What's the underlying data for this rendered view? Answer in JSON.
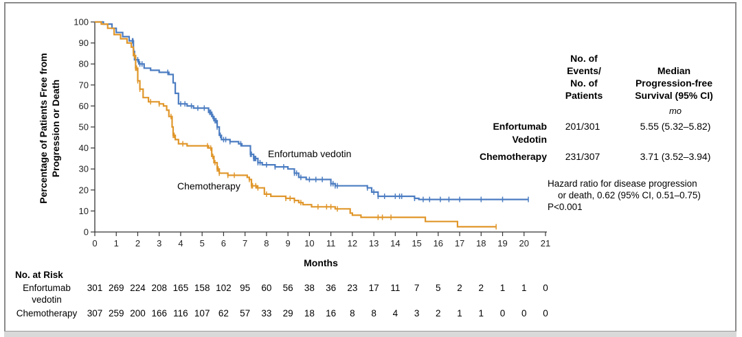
{
  "chart_data": {
    "type": "line",
    "subtype": "kaplan-meier",
    "xlabel": "Months",
    "ylabel": [
      "Percentage of Patients Free from",
      "Progression or Death"
    ],
    "xlim": [
      0,
      21
    ],
    "ylim": [
      0,
      100
    ],
    "x_ticks": [
      "0",
      "1",
      "2",
      "3",
      "4",
      "5",
      "6",
      "7",
      "8",
      "9",
      "10",
      "11",
      "12",
      "13",
      "14",
      "15",
      "16",
      "17",
      "18",
      "19",
      "20",
      "21"
    ],
    "y_ticks": [
      "0",
      "10",
      "20",
      "30",
      "40",
      "50",
      "60",
      "70",
      "80",
      "90",
      "100"
    ],
    "grid": false,
    "series": [
      {
        "name": "Enfortumab vedotin",
        "color": "#4b7cc1",
        "steps": [
          [
            0,
            100
          ],
          [
            0.4,
            99
          ],
          [
            0.8,
            97
          ],
          [
            1.0,
            95
          ],
          [
            1.3,
            93
          ],
          [
            1.6,
            91
          ],
          [
            1.8,
            86
          ],
          [
            1.85,
            82
          ],
          [
            2.05,
            80
          ],
          [
            2.3,
            78
          ],
          [
            2.6,
            77
          ],
          [
            3.0,
            76
          ],
          [
            3.45,
            75
          ],
          [
            3.65,
            71
          ],
          [
            3.75,
            66
          ],
          [
            3.9,
            61
          ],
          [
            4.3,
            60
          ],
          [
            4.6,
            59
          ],
          [
            5.3,
            57
          ],
          [
            5.45,
            55
          ],
          [
            5.55,
            53
          ],
          [
            5.7,
            50
          ],
          [
            5.8,
            46
          ],
          [
            5.9,
            44
          ],
          [
            6.3,
            43
          ],
          [
            6.7,
            42
          ],
          [
            6.85,
            41
          ],
          [
            7.25,
            37
          ],
          [
            7.4,
            35
          ],
          [
            7.6,
            33
          ],
          [
            7.8,
            32
          ],
          [
            8.4,
            31
          ],
          [
            9.0,
            30
          ],
          [
            9.3,
            28
          ],
          [
            9.5,
            26
          ],
          [
            9.85,
            25
          ],
          [
            11.0,
            23
          ],
          [
            11.2,
            22
          ],
          [
            12.7,
            21
          ],
          [
            12.9,
            19
          ],
          [
            13.2,
            17
          ],
          [
            14.2,
            17
          ],
          [
            14.9,
            16
          ],
          [
            15.1,
            15.5
          ],
          [
            20.2,
            15.5
          ]
        ],
        "censor_x": [
          1.75,
          1.78,
          1.82,
          1.9,
          2.0,
          2.1,
          2.2,
          3.4,
          4.0,
          4.2,
          4.5,
          4.8,
          5.1,
          5.35,
          5.4,
          5.5,
          5.6,
          5.65,
          5.7,
          5.85,
          6.0,
          6.1,
          6.3,
          6.8,
          7.25,
          7.3,
          7.4,
          7.45,
          7.5,
          7.6,
          7.7,
          8.0,
          8.4,
          8.8,
          9.3,
          9.4,
          9.6,
          10.0,
          10.3,
          10.6,
          11.0,
          11.1,
          11.2,
          11.3,
          12.7,
          13.0,
          13.2,
          13.5,
          14.0,
          14.2,
          14.3,
          14.9,
          15.3,
          15.6,
          16.1,
          16.5,
          17.0,
          18.0,
          19.0,
          20.2
        ],
        "at_risk": [
          "301",
          "269",
          "224",
          "208",
          "165",
          "158",
          "102",
          "95",
          "60",
          "56",
          "38",
          "36",
          "23",
          "17",
          "11",
          "7",
          "5",
          "2",
          "2",
          "1",
          "1",
          "0"
        ]
      },
      {
        "name": "Chemotherapy",
        "color": "#e0962a",
        "steps": [
          [
            0,
            100
          ],
          [
            0.3,
            99
          ],
          [
            0.6,
            97
          ],
          [
            0.9,
            94
          ],
          [
            1.2,
            92
          ],
          [
            1.5,
            90
          ],
          [
            1.7,
            88
          ],
          [
            1.8,
            84
          ],
          [
            1.9,
            78
          ],
          [
            2.0,
            72
          ],
          [
            2.1,
            68
          ],
          [
            2.25,
            64
          ],
          [
            2.5,
            62
          ],
          [
            3.0,
            61
          ],
          [
            3.2,
            60
          ],
          [
            3.35,
            58
          ],
          [
            3.45,
            55
          ],
          [
            3.6,
            50
          ],
          [
            3.65,
            46
          ],
          [
            3.75,
            44
          ],
          [
            3.9,
            42
          ],
          [
            4.3,
            41
          ],
          [
            5.3,
            40
          ],
          [
            5.45,
            36
          ],
          [
            5.55,
            33
          ],
          [
            5.7,
            30
          ],
          [
            5.8,
            28
          ],
          [
            6.2,
            27
          ],
          [
            7.1,
            26
          ],
          [
            7.2,
            25
          ],
          [
            7.3,
            22
          ],
          [
            7.55,
            21
          ],
          [
            7.9,
            18
          ],
          [
            8.2,
            17
          ],
          [
            8.9,
            16
          ],
          [
            9.3,
            15
          ],
          [
            9.5,
            14
          ],
          [
            9.7,
            13
          ],
          [
            10.1,
            12
          ],
          [
            11.2,
            11
          ],
          [
            11.9,
            9
          ],
          [
            12.0,
            8
          ],
          [
            12.4,
            7
          ],
          [
            15.35,
            7
          ],
          [
            15.4,
            5
          ],
          [
            16.85,
            5
          ],
          [
            16.9,
            2.5
          ],
          [
            18.7,
            2.5
          ]
        ],
        "censor_x": [
          1.85,
          1.9,
          1.95,
          2.0,
          2.1,
          2.6,
          3.0,
          3.55,
          3.65,
          3.7,
          4.1,
          5.25,
          5.4,
          5.5,
          5.6,
          5.7,
          5.75,
          5.8,
          6.2,
          6.5,
          7.2,
          7.3,
          7.35,
          7.5,
          7.6,
          8.0,
          8.9,
          9.1,
          9.3,
          9.6,
          10.4,
          10.8,
          11.0,
          11.3,
          13.2,
          13.4,
          13.8,
          18.7
        ],
        "at_risk": [
          "307",
          "259",
          "200",
          "166",
          "116",
          "107",
          "62",
          "57",
          "33",
          "29",
          "18",
          "16",
          "8",
          "8",
          "4",
          "3",
          "2",
          "1",
          "1",
          "0",
          "0",
          "0"
        ]
      }
    ],
    "curve_labels": {
      "enfortumab": "Enfortumab vedotin",
      "chemotherapy": "Chemotherapy"
    },
    "summary_table": {
      "col1_header": [
        "No. of",
        "Events/",
        "No. of",
        "Patients"
      ],
      "col2_header": [
        "Median",
        "Progression-free",
        "Survival (95% CI)"
      ],
      "unit": "mo",
      "rows": [
        {
          "group": [
            "Enfortumab",
            "Vedotin"
          ],
          "events": "201/301",
          "median": "5.55 (5.32–5.82)"
        },
        {
          "group": [
            "Chemotherapy"
          ],
          "events": "231/307",
          "median": "3.71 (3.52–3.94)"
        }
      ]
    },
    "hazard_text": [
      "Hazard ratio for disease progression",
      "or death, 0.62 (95% CI, 0.51–0.75)",
      "P<0.001"
    ],
    "at_risk_table": {
      "title": "No. at Risk",
      "row_labels": [
        [
          "Enfortumab",
          "vedotin"
        ],
        [
          "Chemotherapy"
        ]
      ]
    }
  }
}
